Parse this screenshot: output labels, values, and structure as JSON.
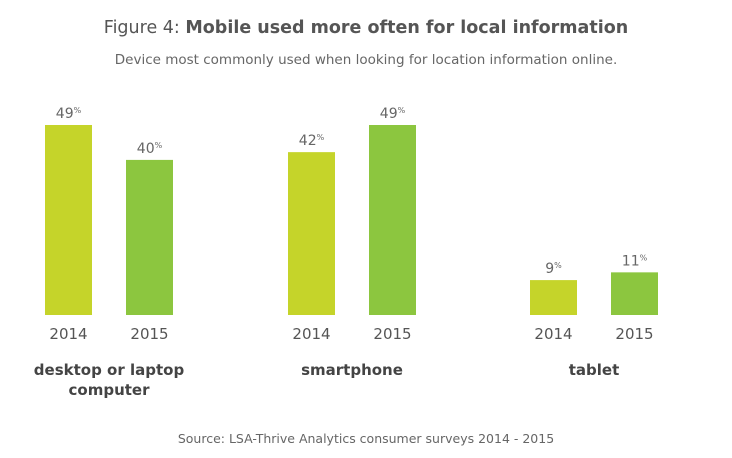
{
  "header": {
    "title_prefix": "Figure 4: ",
    "title_main": "Mobile used more often for local information",
    "subtitle": "Device most commonly used when looking for location information online."
  },
  "source": "Source: LSA-Thrive Analytics consumer surveys 2014 - 2015",
  "colors": {
    "2014": "#c5d42a",
    "2015": "#8cc63f"
  },
  "chart_data": {
    "type": "bar",
    "title": "Mobile used more often for local information",
    "subtitle": "Device most commonly used when looking for location information online.",
    "categories": [
      "desktop or laptop computer",
      "smartphone",
      "tablet"
    ],
    "category_labels": [
      [
        "desktop or laptop",
        "computer"
      ],
      [
        "smartphone"
      ],
      [
        "tablet"
      ]
    ],
    "series": [
      {
        "name": "2014",
        "values": [
          49,
          42,
          9
        ],
        "value_labels": [
          "49",
          "42",
          "9"
        ]
      },
      {
        "name": "2015",
        "values": [
          40,
          49,
          11
        ],
        "value_labels": [
          "40",
          "49",
          "11"
        ]
      }
    ],
    "value_suffix": "%",
    "xlabel": "",
    "ylabel": "",
    "ylim": [
      0,
      49
    ],
    "grid": false,
    "legend": "none"
  }
}
